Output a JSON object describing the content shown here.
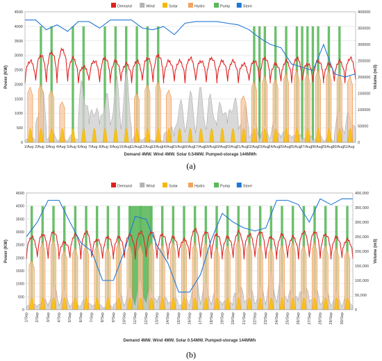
{
  "chart_data": [
    {
      "type": "line",
      "panel_label": "(a)",
      "xlabel": "Demand 4MW. Wind 4MW. Solar 0.54MW. Pumped-storage 144MWh",
      "ylabel_left": "Power (KW)",
      "ylabel_right": "Volume (m3)",
      "ylim_left": [
        0,
        4500
      ],
      "ylim_right": [
        0,
        400000
      ],
      "yticks_left": [
        "0",
        "500",
        "1000",
        "1500",
        "2000",
        "2500",
        "3000",
        "3500",
        "4000",
        "4500"
      ],
      "yticks_right": [
        "0",
        "50000",
        "100000",
        "150000",
        "200000",
        "250000",
        "300000",
        "350000",
        "400000"
      ],
      "grid": true,
      "legend_position": "top-center",
      "legend": [
        {
          "label": "Demand",
          "color": "#e02020"
        },
        {
          "label": "Wind",
          "color": "#b4b4b4"
        },
        {
          "label": "Solar",
          "color": "#f5b800"
        },
        {
          "label": "Hydro",
          "color": "#f4a460"
        },
        {
          "label": "Pump",
          "color": "#5cb85c"
        },
        {
          "label": "Store",
          "color": "#1f77d4"
        }
      ],
      "categories": [
        "1/Aug",
        "2/Aug",
        "3/Aug",
        "4/Aug",
        "5/Aug",
        "6/Aug",
        "7/Aug",
        "8/Aug",
        "9/Aug",
        "10/Aug",
        "11/Aug",
        "12/Aug",
        "13/Aug",
        "14/Aug",
        "15/Aug",
        "16/Aug",
        "17/Aug",
        "18/Aug",
        "19/Aug",
        "20/Aug",
        "21/Aug",
        "22/Aug",
        "23/Aug",
        "24/Aug",
        "25/Aug",
        "26/Aug",
        "27/Aug",
        "28/Aug",
        "29/Aug",
        "30/Aug",
        "31/Aug"
      ],
      "series": {
        "demand_peak_kw": [
          2800,
          3000,
          3100,
          3200,
          2900,
          2600,
          2800,
          2900,
          2800,
          2700,
          2800,
          2900,
          3000,
          2800,
          2800,
          2900,
          2800,
          2900,
          2800,
          2800,
          2700,
          2800,
          2900,
          2700,
          2800,
          2900,
          2700,
          2800,
          2700,
          2800,
          2900
        ],
        "demand_base_kw": 2100,
        "wind_peak_kw": [
          200,
          2100,
          400,
          200,
          300,
          2700,
          1800,
          2100,
          2400,
          2500,
          300,
          200,
          100,
          700,
          1600,
          1800,
          2000,
          1900,
          1900,
          2100,
          1500,
          700,
          600,
          800,
          500,
          400,
          300,
          300,
          200,
          1200,
          1300
        ],
        "solar_peak_kw": 480,
        "hydro_peak_kw": [
          1900,
          2000,
          1800,
          1400,
          0,
          0,
          0,
          0,
          0,
          0,
          1700,
          2000,
          2100,
          1800,
          0,
          0,
          0,
          0,
          0,
          0,
          1600,
          2100,
          2300,
          2200,
          2400,
          2500,
          2400,
          2500,
          2500,
          2400,
          2300
        ],
        "pump_days": [
          2,
          3,
          5,
          6,
          8,
          9,
          10,
          11,
          12,
          13,
          22,
          22.5,
          23,
          24,
          25,
          26,
          26.5,
          27,
          27.5,
          28,
          29,
          30
        ],
        "pump_kw": 4000,
        "store_m3": [
          375000,
          375000,
          345000,
          360000,
          340000,
          370000,
          370000,
          350000,
          375000,
          375000,
          375000,
          350000,
          345000,
          355000,
          330000,
          365000,
          370000,
          370000,
          370000,
          365000,
          360000,
          345000,
          320000,
          300000,
          290000,
          240000,
          230000,
          220000,
          300000,
          210000,
          200000,
          210000
        ]
      }
    },
    {
      "type": "line",
      "panel_label": "(b)",
      "xlabel": "Demand 4MW. Wind 4MW. Solar 0.54MW. Pumped-storage 144MWh",
      "ylabel_left": "Power (KW)",
      "ylabel_right": "Volume (m3)",
      "ylim_left": [
        0,
        4500
      ],
      "ylim_right": [
        0,
        400000
      ],
      "yticks_left": [
        "0",
        "500",
        "1000",
        "1500",
        "2000",
        "2500",
        "3000",
        "3500",
        "4000",
        "4500"
      ],
      "yticks_right": [
        "0",
        "50,000",
        "100,000",
        "150,000",
        "200,000",
        "250,000",
        "300,000",
        "350,000",
        "400,000"
      ],
      "grid": true,
      "legend_position": "top-center",
      "legend": [
        {
          "label": "Demand",
          "color": "#e02020"
        },
        {
          "label": "Wind",
          "color": "#b4b4b4"
        },
        {
          "label": "Solar",
          "color": "#f5b800"
        },
        {
          "label": "Hydro",
          "color": "#f4a460"
        },
        {
          "label": "Pump",
          "color": "#5cb85c"
        },
        {
          "label": "Store",
          "color": "#1f77d4"
        }
      ],
      "categories": [
        "1/Sep",
        "2/Sep",
        "3/Sep",
        "4/Sep",
        "5/Sep",
        "6/Sep",
        "7/Sep",
        "8/Sep",
        "9/Sep",
        "10/Sep",
        "11/Sep",
        "12/Sep",
        "13/Sep",
        "14/Sep",
        "15/Sep",
        "16/Sep",
        "17/Sep",
        "18/Sep",
        "19/Sep",
        "20/Sep",
        "21/Sep",
        "22/Sep",
        "23/Sep",
        "24/Sep",
        "25/Sep",
        "26/Sep",
        "27/Sep",
        "28/Sep",
        "29/Sep",
        "30/Sep"
      ],
      "series": {
        "demand_peak_kw": [
          2800,
          2900,
          3000,
          2600,
          2900,
          3000,
          2700,
          2800,
          2800,
          2900,
          3000,
          3000,
          2900,
          2800,
          2700,
          3100,
          3000,
          2900,
          2800,
          3000,
          2900,
          3000,
          2800,
          2900,
          2800,
          3000,
          3000,
          2900,
          2800,
          2700
        ],
        "demand_base_kw": 2000,
        "wind_peak_kw": [
          300,
          500,
          1000,
          800,
          400,
          500,
          300,
          200,
          700,
          900,
          1200,
          1000,
          800,
          600,
          500,
          1500,
          1100,
          800,
          500,
          1200,
          900,
          1000,
          1500,
          1300,
          1000,
          1200,
          900,
          800,
          700,
          600
        ],
        "solar_peak_kw": 460,
        "hydro_peak_kw": [
          1900,
          2600,
          2700,
          2300,
          2400,
          2500,
          2500,
          2400,
          2600,
          2500,
          2500,
          2600,
          2500,
          2600,
          2700,
          2600,
          2600,
          2400,
          2500,
          2700,
          2600,
          2500,
          2400,
          2500,
          2600,
          2500,
          2600,
          2500,
          2400,
          2300
        ],
        "pump_days": [
          1,
          2,
          3,
          4,
          5,
          6,
          7,
          8,
          9,
          10,
          11,
          12,
          13,
          14,
          15,
          16,
          17,
          18,
          19,
          20,
          21,
          22,
          23,
          24,
          25,
          26,
          27,
          28,
          29,
          30
        ],
        "pump_block": [
          9.5,
          11.5
        ],
        "pump_kw": 4000,
        "store_m3": [
          250000,
          300000,
          375000,
          375000,
          300000,
          230000,
          200000,
          100000,
          100000,
          200000,
          320000,
          310000,
          220000,
          160000,
          60000,
          60000,
          120000,
          240000,
          330000,
          300000,
          280000,
          270000,
          280000,
          375000,
          375000,
          360000,
          300000,
          380000,
          360000,
          380000,
          380000
        ]
      }
    }
  ]
}
